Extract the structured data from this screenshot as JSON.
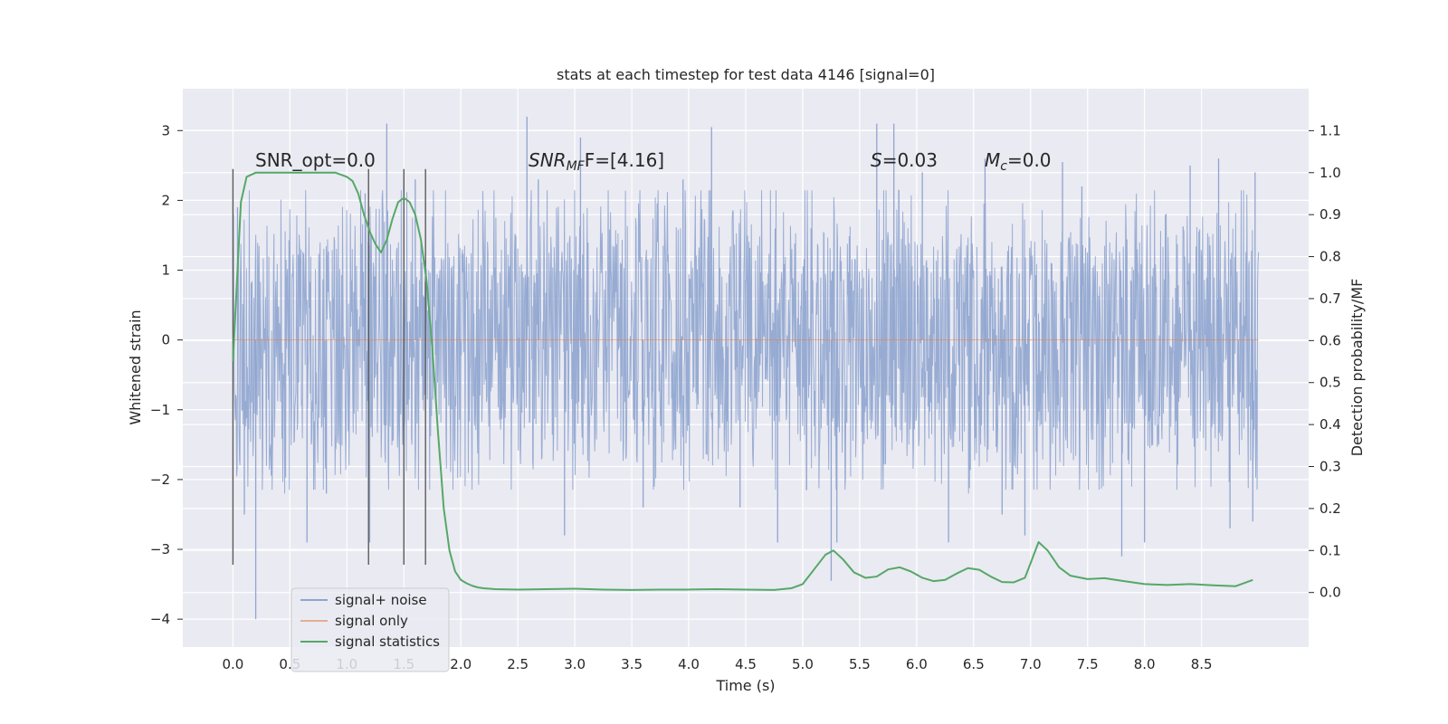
{
  "chart_data": {
    "type": "line",
    "title": "stats at each timestep for test data 4146 [signal=0]",
    "xlabel": "Time (s)",
    "ylabel": "Whitened strain",
    "y2label": "Detection probability/MF",
    "xlim": [
      -0.44,
      9.44
    ],
    "ylim": [
      -4.4,
      3.6
    ],
    "y2lim": [
      -0.13,
      1.2
    ],
    "x_ticks": [
      0.0,
      0.5,
      1.0,
      1.5,
      2.0,
      2.5,
      3.0,
      3.5,
      4.0,
      4.5,
      5.0,
      5.5,
      6.0,
      6.5,
      7.0,
      7.5,
      8.0,
      8.5
    ],
    "x_tick_labels": [
      "0.0",
      "0.5",
      "1.0",
      "1.5",
      "2.0",
      "2.5",
      "3.0",
      "3.5",
      "4.0",
      "4.5",
      "5.0",
      "5.5",
      "6.0",
      "6.5",
      "7.0",
      "7.5",
      "8.0",
      "8.5"
    ],
    "y_ticks": [
      3,
      2,
      1,
      0,
      -1,
      -2,
      -3,
      -4
    ],
    "y_tick_labels": [
      "3",
      "2",
      "1",
      "0",
      "−1",
      "−2",
      "−3",
      "−4"
    ],
    "y2_ticks": [
      1.1,
      1.0,
      0.9,
      0.8,
      0.7,
      0.6,
      0.5,
      0.4,
      0.3,
      0.2,
      0.1,
      0.0
    ],
    "y2_tick_labels": [
      "1.1",
      "1.0",
      "0.9",
      "0.8",
      "0.7",
      "0.6",
      "0.5",
      "0.4",
      "0.3",
      "0.2",
      "0.1",
      "0.0"
    ],
    "grid": true,
    "legend_position": "lower-left",
    "annotations": {
      "snr_opt": "SNR_opt=0.0",
      "snr_mf_base": "SNR",
      "snr_mf_sub": "MF",
      "snr_mf_rest": "F=[4.16]",
      "s_base": "S",
      "s_rest": "=0.03",
      "mc_base": "M",
      "mc_sub": "c",
      "mc_rest": "=0.0"
    },
    "series": [
      {
        "name": "signal+ noise",
        "color": "#8fa5cf",
        "x_range": [
          0.0,
          9.0
        ],
        "typical_amplitude": 1.3,
        "peaks": [
          {
            "x": 0.04,
            "y": 1.9
          },
          {
            "x": 0.1,
            "y": -2.5
          },
          {
            "x": 0.65,
            "y": -2.9
          },
          {
            "x": 0.82,
            "y": -2.2
          },
          {
            "x": 1.16,
            "y": 2.1
          },
          {
            "x": 1.35,
            "y": 3.1
          },
          {
            "x": 1.2,
            "y": -2.9
          },
          {
            "x": 2.58,
            "y": 3.2
          },
          {
            "x": 2.68,
            "y": 2.3
          },
          {
            "x": 2.91,
            "y": -2.8
          },
          {
            "x": 3.95,
            "y": 2.3
          },
          {
            "x": 3.6,
            "y": -2.4
          },
          {
            "x": 4.2,
            "y": 3.05
          },
          {
            "x": 4.45,
            "y": -2.4
          },
          {
            "x": 5.25,
            "y": -3.45
          },
          {
            "x": 5.3,
            "y": -2.9
          },
          {
            "x": 5.65,
            "y": 3.1
          },
          {
            "x": 5.8,
            "y": 3.1
          },
          {
            "x": 6.28,
            "y": -2.9
          },
          {
            "x": 6.6,
            "y": 2.6
          },
          {
            "x": 6.75,
            "y": -2.5
          },
          {
            "x": 7.28,
            "y": 2.55
          },
          {
            "x": 7.45,
            "y": 2.2
          },
          {
            "x": 7.8,
            "y": -3.1
          },
          {
            "x": 8.0,
            "y": -2.9
          },
          {
            "x": 8.4,
            "y": 2.5
          },
          {
            "x": 8.65,
            "y": 2.6
          },
          {
            "x": 8.75,
            "y": -2.7
          },
          {
            "x": 8.97,
            "y": 2.4
          },
          {
            "x": 8.95,
            "y": -2.6
          },
          {
            "x": 0.2,
            "y": -4.0
          },
          {
            "x": 1.6,
            "y": 2.3
          },
          {
            "x": 3.05,
            "y": 2.9
          },
          {
            "x": 6.95,
            "y": -2.8
          },
          {
            "x": 4.78,
            "y": -2.9
          },
          {
            "x": 6.05,
            "y": 2.4
          }
        ]
      },
      {
        "name": "signal only",
        "color": "#dd8452",
        "x": [
          0.0,
          9.0
        ],
        "y": [
          0.0,
          0.0
        ]
      },
      {
        "name": "signal statistics",
        "color": "#55a868",
        "axis": "right",
        "x": [
          0.0,
          0.07,
          0.12,
          0.2,
          0.3,
          0.4,
          0.5,
          0.6,
          0.7,
          0.8,
          0.9,
          1.0,
          1.05,
          1.1,
          1.15,
          1.2,
          1.25,
          1.3,
          1.35,
          1.4,
          1.45,
          1.5,
          1.55,
          1.6,
          1.65,
          1.7,
          1.75,
          1.8,
          1.85,
          1.9,
          1.95,
          2.0,
          2.05,
          2.1,
          2.15,
          2.2,
          2.3,
          2.5,
          2.75,
          3.0,
          3.25,
          3.5,
          3.75,
          4.0,
          4.25,
          4.5,
          4.75,
          4.9,
          5.0,
          5.1,
          5.2,
          5.27,
          5.35,
          5.45,
          5.55,
          5.65,
          5.75,
          5.85,
          5.95,
          6.05,
          6.15,
          6.25,
          6.35,
          6.45,
          6.55,
          6.65,
          6.75,
          6.85,
          6.95,
          7.0,
          7.07,
          7.15,
          7.25,
          7.35,
          7.5,
          7.65,
          7.8,
          8.0,
          8.2,
          8.4,
          8.6,
          8.8,
          8.95
        ],
        "y": [
          0.55,
          0.93,
          0.99,
          1.0,
          1.0,
          1.0,
          1.0,
          1.0,
          1.0,
          1.0,
          1.0,
          0.99,
          0.98,
          0.95,
          0.9,
          0.86,
          0.83,
          0.81,
          0.84,
          0.89,
          0.93,
          0.94,
          0.93,
          0.9,
          0.84,
          0.74,
          0.58,
          0.38,
          0.2,
          0.1,
          0.05,
          0.03,
          0.022,
          0.016,
          0.012,
          0.01,
          0.008,
          0.007,
          0.008,
          0.009,
          0.007,
          0.006,
          0.007,
          0.007,
          0.008,
          0.007,
          0.006,
          0.01,
          0.02,
          0.055,
          0.09,
          0.1,
          0.08,
          0.048,
          0.035,
          0.038,
          0.055,
          0.06,
          0.05,
          0.035,
          0.027,
          0.03,
          0.045,
          0.058,
          0.054,
          0.038,
          0.025,
          0.024,
          0.035,
          0.07,
          0.12,
          0.1,
          0.06,
          0.04,
          0.032,
          0.034,
          0.028,
          0.02,
          0.018,
          0.02,
          0.017,
          0.015,
          0.03
        ]
      }
    ],
    "event_markers": {
      "color": "#5c5c5c",
      "x": [
        0.0,
        1.19,
        1.5,
        1.69
      ],
      "y_top": 2.45,
      "y_bottom": -3.22
    }
  }
}
